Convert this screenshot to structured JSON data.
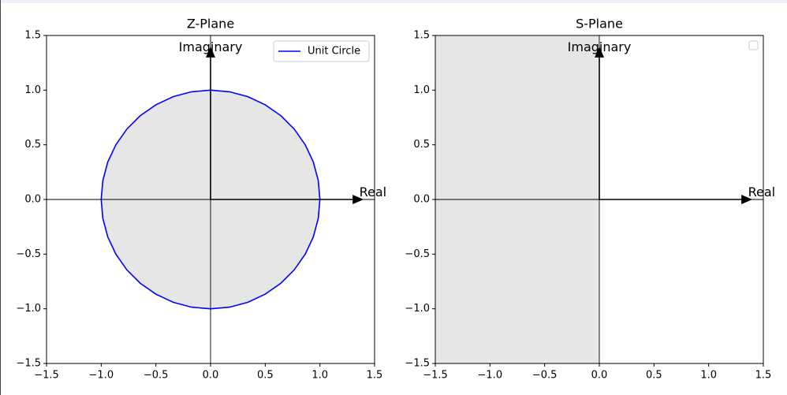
{
  "chart_data": [
    {
      "type": "line",
      "title": "Z-Plane",
      "series": [
        {
          "name": "Unit Circle",
          "color": "#0000ff",
          "fill": "#e6e6e6",
          "x": [
            1,
            0.985,
            0.94,
            0.866,
            0.766,
            0.643,
            0.5,
            0.342,
            0.174,
            0,
            -0.174,
            -0.342,
            -0.5,
            -0.643,
            -0.766,
            -0.866,
            -0.94,
            -0.985,
            -1,
            -0.985,
            -0.94,
            -0.866,
            -0.766,
            -0.643,
            -0.5,
            -0.342,
            -0.174,
            0,
            0.174,
            0.342,
            0.5,
            0.643,
            0.766,
            0.866,
            0.94,
            0.985,
            1
          ],
          "values": [
            0,
            0.174,
            0.342,
            0.5,
            0.643,
            0.766,
            0.866,
            0.94,
            0.985,
            1,
            0.985,
            0.94,
            0.866,
            0.766,
            0.643,
            0.5,
            0.342,
            0.174,
            0,
            -0.174,
            -0.342,
            -0.5,
            -0.643,
            -0.766,
            -0.866,
            -0.94,
            -0.985,
            -1,
            -0.985,
            -0.94,
            -0.866,
            -0.766,
            -0.643,
            -0.5,
            -0.342,
            -0.174,
            0
          ]
        }
      ],
      "annotations": [
        {
          "text": "Real",
          "x": 1.36,
          "y": 0.06,
          "arrow_x": [
            0,
            1.4
          ],
          "arrow_y": [
            0,
            0
          ]
        },
        {
          "text": "Imaginary",
          "x": 0,
          "y": 1.39,
          "arrow_x": [
            0,
            0
          ],
          "arrow_y": [
            0,
            1.4
          ]
        }
      ],
      "axhline": 0,
      "axvline": 0,
      "xlim": [
        -1.5,
        1.5
      ],
      "ylim": [
        -1.5,
        1.5
      ],
      "xticks": [
        {
          "value": -1.5,
          "label": "−1.5"
        },
        {
          "value": -1,
          "label": "−1.0"
        },
        {
          "value": -0.5,
          "label": "−0.5"
        },
        {
          "value": 0,
          "label": "0.0"
        },
        0.5,
        {
          "value": 1,
          "label": "1.0"
        },
        1.5
      ],
      "yticks": [
        {
          "value": -1.5,
          "label": "−1.5"
        },
        {
          "value": -1,
          "label": "−1.0"
        },
        {
          "value": -0.5,
          "label": "−0.5"
        },
        {
          "value": 0,
          "label": "0.0"
        },
        0.5,
        {
          "value": 1,
          "label": "1.0"
        },
        1.5
      ],
      "legend": "upper right"
    },
    {
      "type": "line",
      "title": "S-Plane",
      "series": [],
      "shaded_region": {
        "x": [
          -1.5,
          0
        ],
        "color": "#e6e6e6"
      },
      "annotations": [
        {
          "text": "Real",
          "x": 1.36,
          "y": 0.06,
          "arrow_x": [
            0,
            1.4
          ],
          "arrow_y": [
            0,
            0
          ]
        },
        {
          "text": "Imaginary",
          "x": 0,
          "y": 1.39,
          "arrow_x": [
            0,
            0
          ],
          "arrow_y": [
            0,
            1.4
          ]
        }
      ],
      "axhline": 0,
      "axvline": 0,
      "xlim": [
        -1.5,
        1.5
      ],
      "ylim": [
        -1.5,
        1.5
      ],
      "xticks": [
        {
          "value": -1.5,
          "label": "−1.5"
        },
        {
          "value": -1,
          "label": "−1.0"
        },
        {
          "value": -0.5,
          "label": "−0.5"
        },
        {
          "value": 0,
          "label": "0.0"
        },
        0.5,
        {
          "value": 1,
          "label": "1.0"
        },
        1.5
      ],
      "yticks": [
        {
          "value": -1.5,
          "label": "−1.5"
        },
        {
          "value": -1,
          "label": "−1.0"
        },
        {
          "value": -0.5,
          "label": "−0.5"
        },
        {
          "value": 0,
          "label": "0.0"
        },
        0.5,
        {
          "value": 1,
          "label": "1.0"
        },
        1.5
      ],
      "legend": "upper right"
    }
  ]
}
